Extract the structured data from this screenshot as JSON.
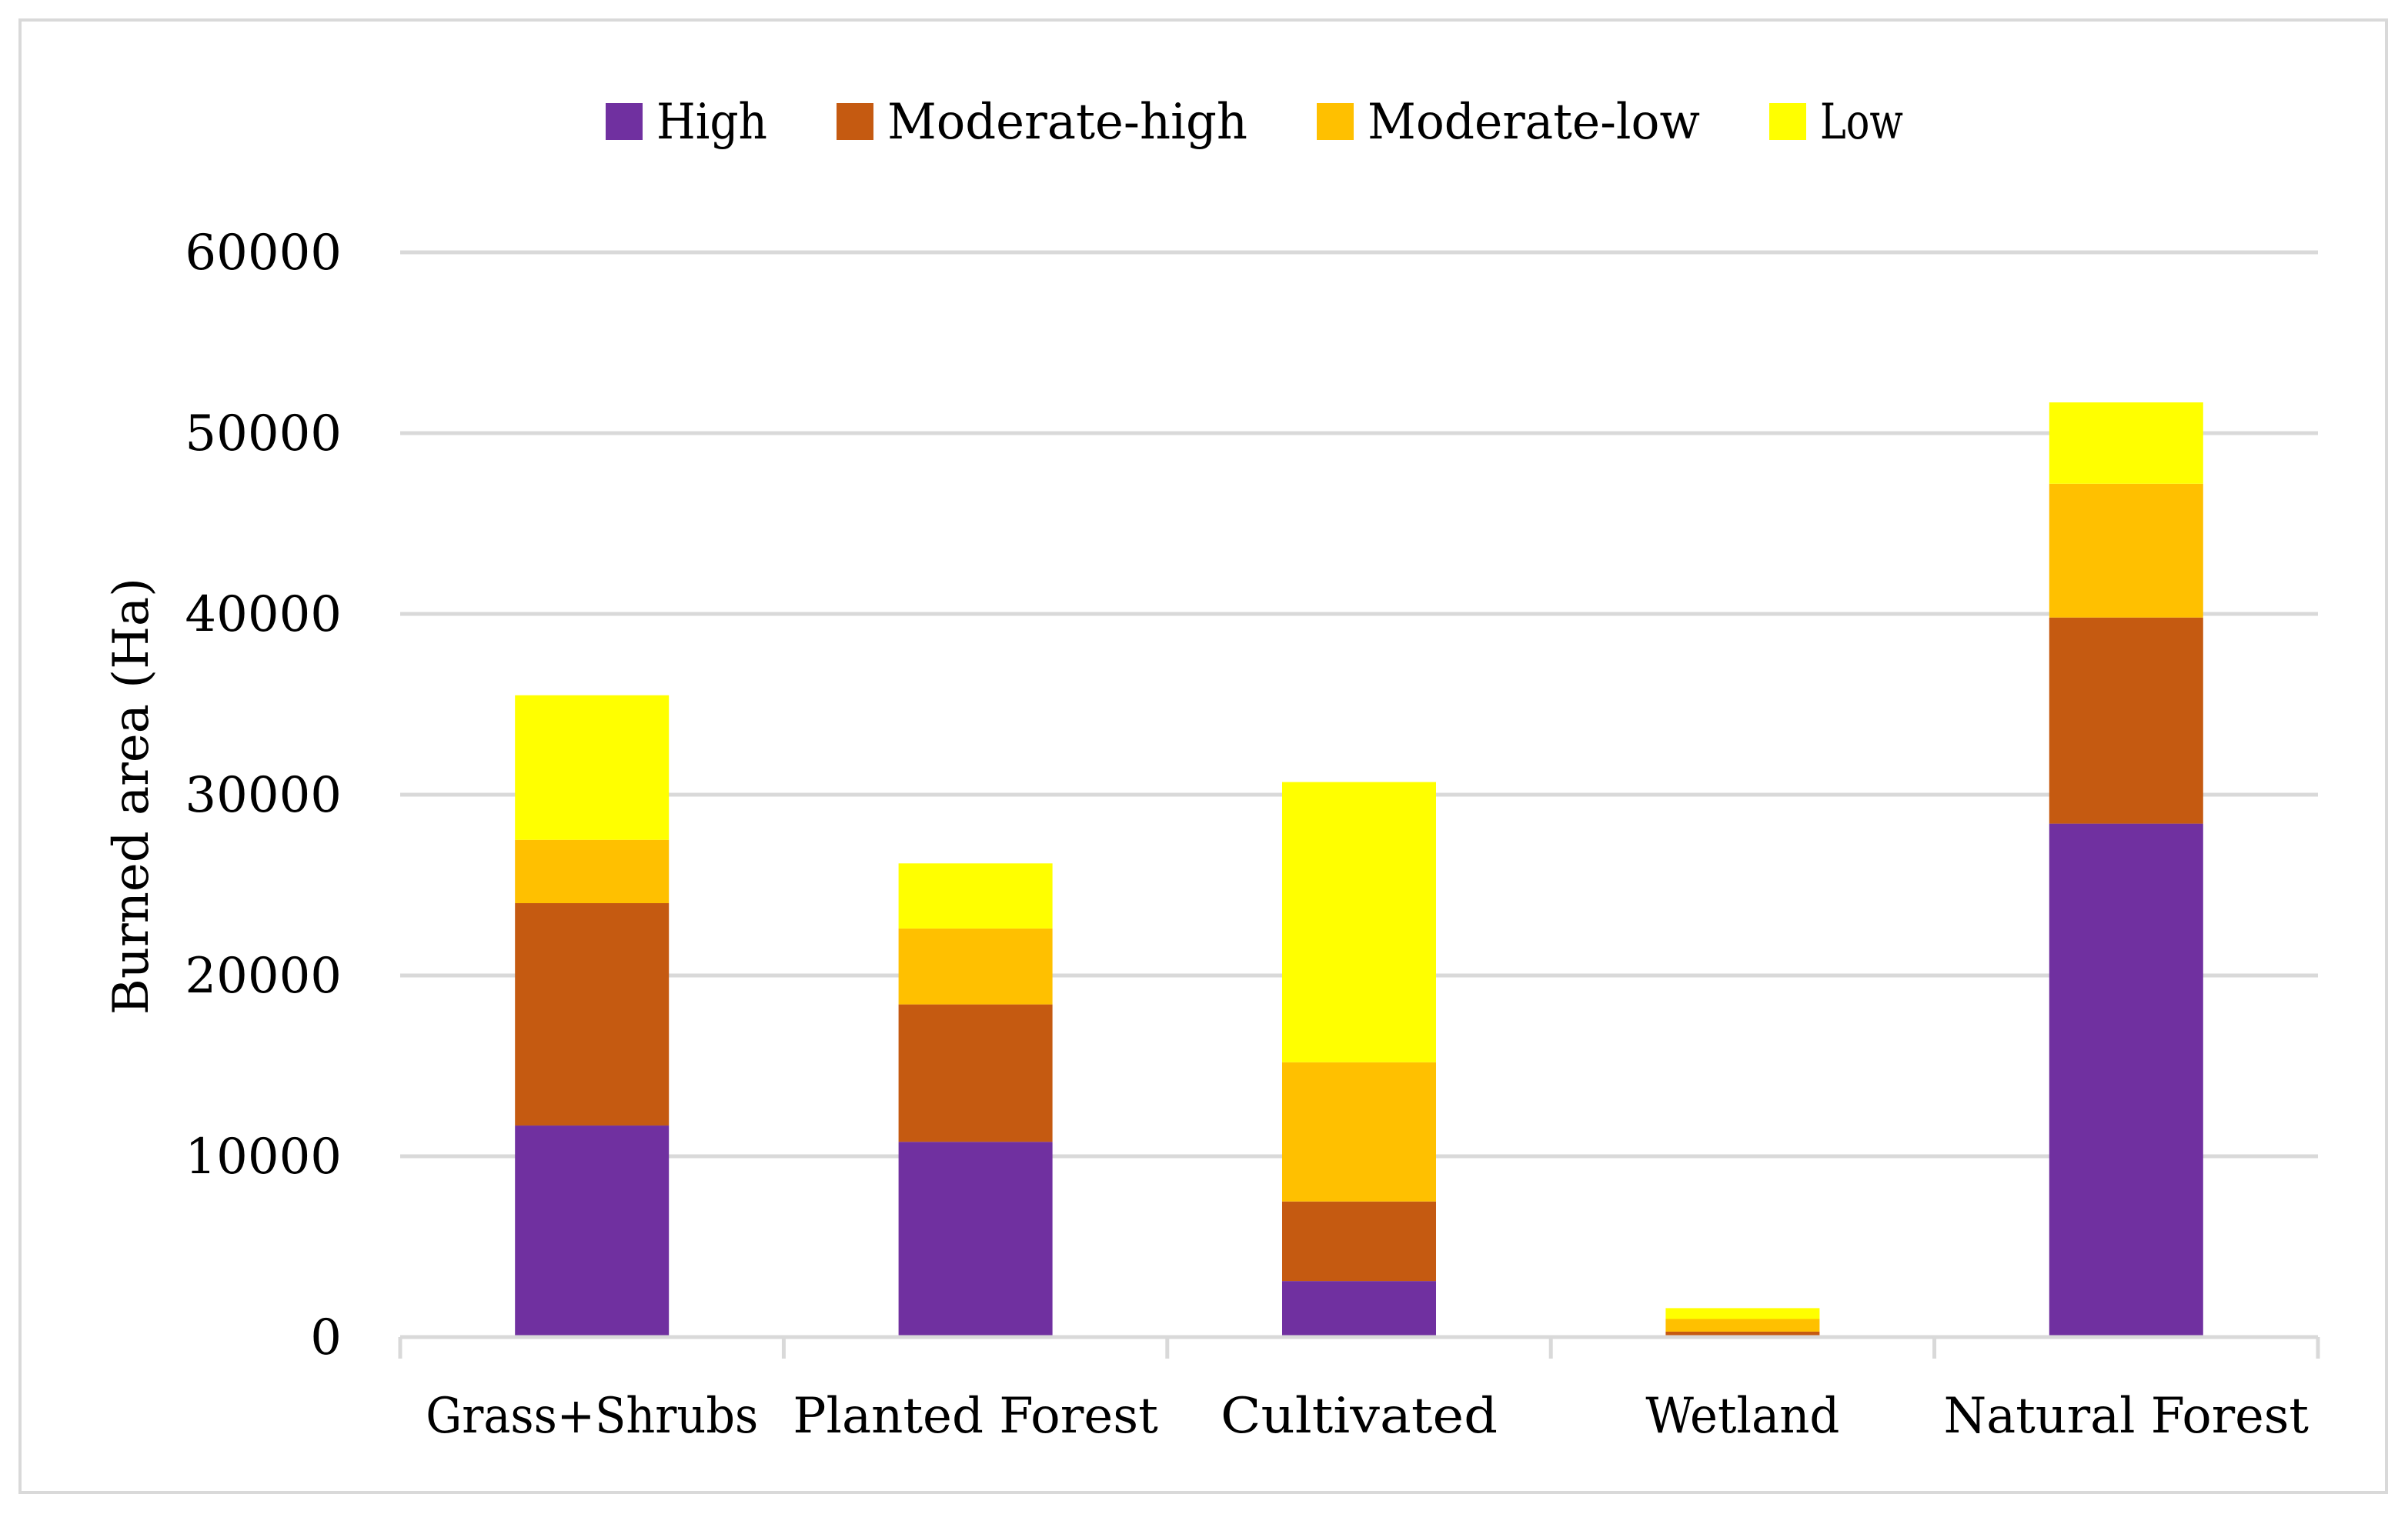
{
  "chart_data": {
    "type": "bar",
    "stacked": true,
    "title": "",
    "xlabel": "",
    "ylabel": "Burned area (Ha)",
    "ylim": [
      0,
      60000
    ],
    "yticks": [
      0,
      10000,
      20000,
      30000,
      40000,
      50000,
      60000
    ],
    "ytick_labels": [
      "0",
      "10000",
      "20000",
      "30000",
      "40000",
      "50000",
      "60000"
    ],
    "grid": true,
    "legend_position": "top-center",
    "categories": [
      "Grass+Shrubs",
      "Planted Forest",
      "Cultivated",
      "Wetland",
      "Natural Forest"
    ],
    "series": [
      {
        "name": "High",
        "color": "#7030A0",
        "values": [
          11700,
          10800,
          3100,
          100,
          28400
        ]
      },
      {
        "name": "Moderate-high",
        "color": "#C55A11",
        "values": [
          12300,
          7600,
          4400,
          200,
          11400
        ]
      },
      {
        "name": "Moderate-low",
        "color": "#FFC000",
        "values": [
          3500,
          4200,
          7700,
          700,
          7400
        ]
      },
      {
        "name": "Low",
        "color": "#FFFF00",
        "values": [
          8000,
          3600,
          15500,
          600,
          4500
        ]
      }
    ]
  }
}
